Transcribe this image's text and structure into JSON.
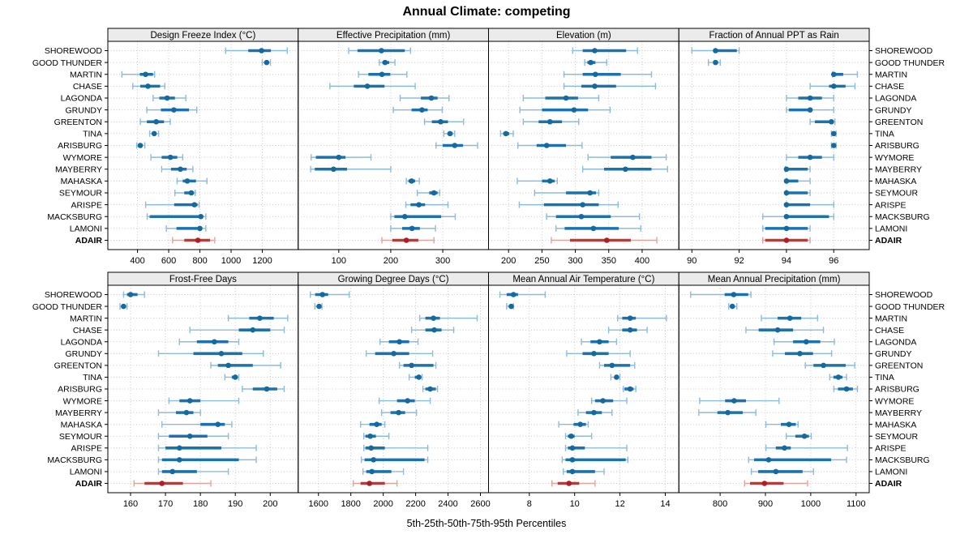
{
  "title": "Annual Climate: competing",
  "caption": "5th-25th-50th-75th-95th Percentiles",
  "colors": {
    "blue_main": "#1c72ad",
    "blue_light": "#8dbbdc",
    "blue_dot": "#14699f",
    "red_main": "#c13832",
    "red_light": "#dfa49e",
    "red_dot": "#ad1f24",
    "strip_bg": "#ebebeb",
    "grid": "#c9c9c9",
    "border": "#000000"
  },
  "chart_data": {
    "type": "dotplot-percentile-trellis",
    "percentile_labels": [
      "5th",
      "25th",
      "50th",
      "75th",
      "95th"
    ],
    "highlight_location": "ADAIR",
    "locations": [
      "SHOREWOOD",
      "GOOD THUNDER",
      "MARTIN",
      "CHASE",
      "LAGONDA",
      "GRUNDY",
      "GREENTON",
      "TINA",
      "ARISBURG",
      "WYMORE",
      "MAYBERRY",
      "MAHASKA",
      "SEYMOUR",
      "ARISPE",
      "MACKSBURG",
      "LAMONI",
      "ADAIR"
    ],
    "panels": [
      {
        "title": "Design Freeze Index (°C)",
        "grid_row": 0,
        "grid_col": 0,
        "xlim": [
          210,
          1430
        ],
        "ticks": [
          400,
          600,
          800,
          1000,
          1200
        ],
        "series": [
          [
            965,
            1110,
            1195,
            1255,
            1360
          ],
          [
            1200,
            1215,
            1228,
            1240,
            1252
          ],
          [
            300,
            415,
            452,
            500,
            510
          ],
          [
            370,
            418,
            467,
            545,
            575
          ],
          [
            500,
            540,
            590,
            640,
            710
          ],
          [
            460,
            550,
            633,
            730,
            780
          ],
          [
            418,
            460,
            520,
            570,
            610
          ],
          [
            478,
            495,
            507,
            520,
            535
          ],
          [
            395,
            408,
            418,
            430,
            447
          ],
          [
            486,
            555,
            611,
            655,
            690
          ],
          [
            555,
            615,
            675,
            715,
            755
          ],
          [
            654,
            690,
            719,
            775,
            845
          ],
          [
            640,
            700,
            745,
            762,
            770
          ],
          [
            452,
            635,
            765,
            785,
            795
          ],
          [
            462,
            478,
            806,
            820,
            838
          ],
          [
            585,
            650,
            800,
            815,
            838
          ],
          [
            625,
            700,
            787,
            865,
            895
          ]
        ]
      },
      {
        "title": "Effective Precipitation (mm)",
        "grid_row": 0,
        "grid_col": 1,
        "xlim": [
          22,
          388
        ],
        "ticks": [
          100,
          200,
          300
        ],
        "series": [
          [
            119,
            136,
            182,
            227,
            238
          ],
          [
            178,
            184,
            189,
            197,
            208
          ],
          [
            138,
            157,
            183,
            199,
            231
          ],
          [
            83,
            129,
            155,
            188,
            247
          ],
          [
            218,
            258,
            278,
            290,
            312
          ],
          [
            205,
            240,
            260,
            271,
            299
          ],
          [
            265,
            279,
            296,
            310,
            340
          ],
          [
            302,
            309,
            314,
            319,
            323
          ],
          [
            287,
            300,
            323,
            339,
            367
          ],
          [
            47,
            56,
            100,
            113,
            162
          ],
          [
            46,
            54,
            90,
            116,
            200
          ],
          [
            230,
            234,
            240,
            247,
            255
          ],
          [
            251,
            274,
            283,
            290,
            294
          ],
          [
            229,
            238,
            254,
            266,
            310
          ],
          [
            200,
            207,
            227,
            297,
            324
          ],
          [
            200,
            222,
            241,
            256,
            286
          ],
          [
            183,
            203,
            230,
            253,
            283
          ]
        ]
      },
      {
        "title": "Elevation (m)",
        "grid_row": 0,
        "grid_col": 2,
        "xlim": [
          170,
          455
        ],
        "ticks": [
          200,
          250,
          300,
          350,
          400
        ],
        "series": [
          [
            296,
            311,
            329,
            376,
            393
          ],
          [
            314,
            318,
            323,
            330,
            347
          ],
          [
            283,
            311,
            330,
            368,
            414
          ],
          [
            283,
            309,
            329,
            361,
            420
          ],
          [
            222,
            255,
            286,
            304,
            335
          ],
          [
            217,
            250,
            298,
            319,
            352
          ],
          [
            222,
            245,
            262,
            280,
            305
          ],
          [
            188,
            192,
            196,
            201,
            207
          ],
          [
            214,
            242,
            257,
            286,
            310
          ],
          [
            319,
            353,
            386,
            414,
            436
          ],
          [
            311,
            343,
            375,
            414,
            438
          ],
          [
            213,
            250,
            262,
            269,
            273
          ],
          [
            239,
            286,
            322,
            331,
            335
          ],
          [
            216,
            253,
            311,
            335,
            364
          ],
          [
            257,
            271,
            309,
            353,
            396
          ],
          [
            271,
            284,
            327,
            365,
            398
          ],
          [
            264,
            292,
            347,
            383,
            422
          ]
        ]
      },
      {
        "title": "Fraction of Annual PPT as Rain",
        "grid_row": 0,
        "grid_col": 3,
        "xlim": [
          89.45,
          97.5
        ],
        "ticks": [
          90,
          92,
          94,
          96
        ],
        "series": [
          [
            90.0,
            90.9,
            91.0,
            91.9,
            92.0
          ],
          [
            90.7,
            90.9,
            91.0,
            91.1,
            91.2
          ],
          [
            95.95,
            96.0,
            96.0,
            96.4,
            97.0
          ],
          [
            95.0,
            95.8,
            96.0,
            96.5,
            96.9
          ],
          [
            94.0,
            94.5,
            95.0,
            95.5,
            96.0
          ],
          [
            94.0,
            94.1,
            95.0,
            95.1,
            96.0
          ],
          [
            95.0,
            95.2,
            95.9,
            96.0,
            96.05
          ],
          [
            95.9,
            95.95,
            96.0,
            96.0,
            96.1
          ],
          [
            95.9,
            96.0,
            96.0,
            96.05,
            96.1
          ],
          [
            94.0,
            94.5,
            95.0,
            95.5,
            96.0
          ],
          [
            93.95,
            94.0,
            94.0,
            94.9,
            95.0
          ],
          [
            94.0,
            94.0,
            94.0,
            94.5,
            95.0
          ],
          [
            94.0,
            94.0,
            94.0,
            94.9,
            95.0
          ],
          [
            94.0,
            94.0,
            94.0,
            95.0,
            96.0
          ],
          [
            93.0,
            93.9,
            94.0,
            95.8,
            96.0
          ],
          [
            93.0,
            93.1,
            94.0,
            94.9,
            95.0
          ],
          [
            93.0,
            93.1,
            94.0,
            94.9,
            95.0
          ]
        ]
      },
      {
        "title": "Frost-Free Days",
        "grid_row": 1,
        "grid_col": 0,
        "xlim": [
          153.5,
          208
        ],
        "ticks": [
          160,
          170,
          180,
          190,
          200
        ],
        "series": [
          [
            158,
            159,
            160,
            162,
            164
          ],
          [
            157,
            157.5,
            158,
            158.5,
            159
          ],
          [
            188,
            194,
            197,
            201,
            205
          ],
          [
            177,
            191,
            195,
            200,
            204
          ],
          [
            174,
            179,
            184,
            188,
            191
          ],
          [
            168,
            178,
            186,
            192,
            198
          ],
          [
            183,
            185,
            188,
            195,
            203
          ],
          [
            187,
            189,
            190,
            190.5,
            191
          ],
          [
            192,
            195,
            199,
            202,
            204
          ],
          [
            171,
            174,
            177,
            180,
            191
          ],
          [
            168,
            173,
            176,
            178,
            180
          ],
          [
            169,
            180,
            185,
            187,
            189
          ],
          [
            168,
            171,
            177,
            182,
            188
          ],
          [
            168,
            170,
            174,
            186,
            196
          ],
          [
            168,
            169,
            174,
            191,
            196
          ],
          [
            168,
            169,
            172,
            179,
            188
          ],
          [
            161,
            164,
            169,
            175,
            183
          ]
        ]
      },
      {
        "title": "Growing Degree Days (°C)",
        "grid_row": 1,
        "grid_col": 1,
        "xlim": [
          1475,
          2650
        ],
        "ticks": [
          1600,
          1800,
          2000,
          2200,
          2400,
          2600
        ],
        "series": [
          [
            1550,
            1580,
            1625,
            1660,
            1790
          ],
          [
            1578,
            1592,
            1604,
            1614,
            1622
          ],
          [
            2225,
            2260,
            2310,
            2350,
            2580
          ],
          [
            2175,
            2260,
            2315,
            2360,
            2435
          ],
          [
            1980,
            2035,
            2100,
            2160,
            2215
          ],
          [
            1895,
            1950,
            2065,
            2160,
            2305
          ],
          [
            2100,
            2125,
            2175,
            2310,
            2325
          ],
          [
            2160,
            2195,
            2220,
            2230,
            2240
          ],
          [
            2245,
            2260,
            2290,
            2325,
            2335
          ],
          [
            1975,
            2085,
            2150,
            2195,
            2290
          ],
          [
            1990,
            2045,
            2095,
            2135,
            2205
          ],
          [
            1860,
            1915,
            1960,
            1990,
            2010
          ],
          [
            1880,
            1890,
            1920,
            1955,
            2035
          ],
          [
            1880,
            1890,
            1925,
            2010,
            2275
          ],
          [
            1865,
            1885,
            1940,
            2255,
            2275
          ],
          [
            1875,
            1895,
            1930,
            2050,
            2125
          ],
          [
            1815,
            1860,
            1915,
            2010,
            2085
          ]
        ]
      },
      {
        "title": "Mean Annual Air Temperature (°C)",
        "grid_row": 1,
        "grid_col": 2,
        "xlim": [
          6.2,
          14.6
        ],
        "ticks": [
          8,
          10,
          12,
          14
        ],
        "series": [
          [
            6.7,
            7.0,
            7.3,
            7.5,
            8.7
          ],
          [
            7.0,
            7.1,
            7.2,
            7.25,
            7.3
          ],
          [
            11.9,
            12.1,
            12.45,
            12.7,
            14.05
          ],
          [
            11.5,
            12.1,
            12.45,
            12.75,
            13.2
          ],
          [
            10.3,
            10.7,
            11.1,
            11.5,
            11.85
          ],
          [
            9.65,
            10.35,
            10.85,
            11.5,
            12.45
          ],
          [
            11.1,
            11.3,
            11.65,
            12.45,
            12.65
          ],
          [
            11.6,
            11.75,
            11.85,
            11.95,
            12.0
          ],
          [
            12.15,
            12.2,
            12.45,
            12.6,
            12.7
          ],
          [
            10.75,
            10.9,
            11.25,
            11.7,
            12.3
          ],
          [
            10.15,
            10.5,
            10.85,
            11.2,
            11.65
          ],
          [
            9.3,
            9.95,
            10.25,
            10.5,
            10.6
          ],
          [
            9.6,
            9.7,
            9.85,
            10.0,
            10.75
          ],
          [
            9.6,
            9.7,
            9.9,
            10.45,
            12.3
          ],
          [
            9.45,
            9.6,
            9.9,
            12.25,
            12.35
          ],
          [
            9.5,
            9.65,
            9.9,
            10.9,
            11.3
          ],
          [
            9.0,
            9.25,
            9.75,
            10.2,
            10.9
          ]
        ]
      },
      {
        "title": "Mean Annual Precipitation (mm)",
        "grid_row": 1,
        "grid_col": 3,
        "xlim": [
          709,
          1129
        ],
        "ticks": [
          800,
          900,
          1000,
          1100
        ],
        "series": [
          [
            735,
            810,
            830,
            862,
            868
          ],
          [
            819,
            823,
            827,
            832,
            837
          ],
          [
            891,
            927,
            954,
            979,
            1015
          ],
          [
            857,
            885,
            927,
            961,
            1028
          ],
          [
            919,
            961,
            990,
            1021,
            1052
          ],
          [
            916,
            943,
            976,
            1005,
            1046
          ],
          [
            988,
            1006,
            1028,
            1077,
            1097
          ],
          [
            1042,
            1050,
            1061,
            1070,
            1079
          ],
          [
            1051,
            1060,
            1079,
            1093,
            1103
          ],
          [
            755,
            811,
            831,
            857,
            930
          ],
          [
            753,
            794,
            817,
            850,
            879
          ],
          [
            901,
            934,
            952,
            967,
            972
          ],
          [
            946,
            966,
            986,
            996,
            1001
          ],
          [
            901,
            923,
            942,
            956,
            1081
          ],
          [
            863,
            875,
            907,
            1045,
            1079
          ],
          [
            869,
            884,
            923,
            982,
            1006
          ],
          [
            854,
            866,
            898,
            940,
            993
          ]
        ]
      }
    ]
  }
}
